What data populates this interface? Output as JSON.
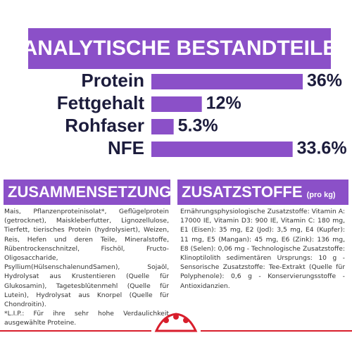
{
  "chart_data": {
    "type": "bar",
    "title": "ANALYTISCHE BESTANDTEILE",
    "categories": [
      "Protein",
      "Fettgehalt",
      "Rohfaser",
      "NFE"
    ],
    "values": [
      36,
      12,
      5.3,
      33.6
    ],
    "value_labels": [
      "36%",
      "12%",
      "5.3%",
      "33.6%"
    ],
    "color": "#8b50c8"
  },
  "sections": [
    {
      "title": "ZUSAMMENSETZUNG",
      "paragraphs": [
        "Mais, Pflanzenproteinisolat*, Geflügelprotein (getrocknet), Maiskleberfutter, Lignozellulose, Tierfett, tierisches Protein (hydrolysiert), Weizen, Reis, Hefen und deren Teile, Mineralstoffe, Rübentrockenschnitzel, Fischöl, Fructo-Oligosaccharide, Psyllium(HülsenschalenundSamen), Sojaöl, Hydrolysat aus Krustentieren (Quelle für Glukosamin), Tagetesblütenmehl (Quelle für Lutein), Hydrolysat aus Knorpel (Quelle für Chondroitin).",
        "*L.I.P.: Für ihre sehr hohe Verdaulichkeit ausgewählte Proteine."
      ]
    },
    {
      "title": "ZUSATZSTOFFE",
      "subtitle": "(pro kg)",
      "paragraphs": [
        "Ernährungsphysiologische Zusatzstoffe: Vitamin A: 17000 IE, Vitamin D3: 900 IE, Vitamin C: 180 mg, E1 (Eisen): 35 mg, E2 (Jod): 3,5 mg, E4 (Kupfer): 11 mg, E5 (Mangan): 45 mg, E6 (Zink): 136 mg, E8 (Selen): 0,06 mg - Technologische Zusatzstoffe: Klinoptilolith sedimentären Ursprungs: 10 g - Sensorische Zusatzstoffe: Tee-Extrakt (Quelle für Polyphenole): 0,6 g - Konservierungsstoffe - Antioxidanzien."
      ]
    }
  ]
}
